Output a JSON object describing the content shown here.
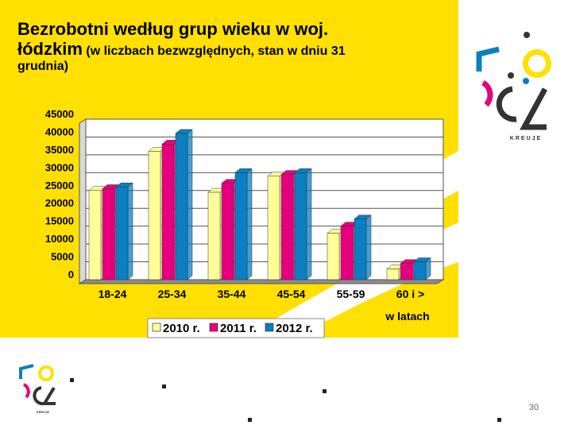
{
  "slide": {
    "title_line1": "Bezrobotni według grup wieku w woj.",
    "title_line2_main": "łódzkim",
    "title_line2_sub": "(w liczbach bezwzględnych, stan w dniu 31",
    "title_line3": "grudnia)",
    "page_number": "30",
    "logo_text": "KREUJE",
    "colors": {
      "background_yellow": "#ffe000",
      "series_2010": "#ffff99",
      "series_2011": "#e6007e",
      "series_2012": "#0a7fc2"
    }
  },
  "chart_data": {
    "type": "bar",
    "categories": [
      "18-24",
      "25-34",
      "35-44",
      "45-54",
      "55-59",
      "60 i >"
    ],
    "series": [
      {
        "name": "2010 r.",
        "values": [
          25000,
          36000,
          24500,
          29000,
          13000,
          3000
        ]
      },
      {
        "name": "2011 r.",
        "values": [
          25500,
          38000,
          27000,
          29500,
          15000,
          4500
        ]
      },
      {
        "name": "2012 r.",
        "values": [
          26000,
          41000,
          30000,
          30000,
          17000,
          5000
        ]
      }
    ],
    "yticks": [
      "0",
      "5000",
      "10000",
      "15000",
      "20000",
      "25000",
      "30000",
      "35000",
      "40000",
      "45000"
    ],
    "ylim": [
      0,
      45000
    ],
    "xlabel": "w latach",
    "grid": true,
    "legend_position": "bottom"
  }
}
